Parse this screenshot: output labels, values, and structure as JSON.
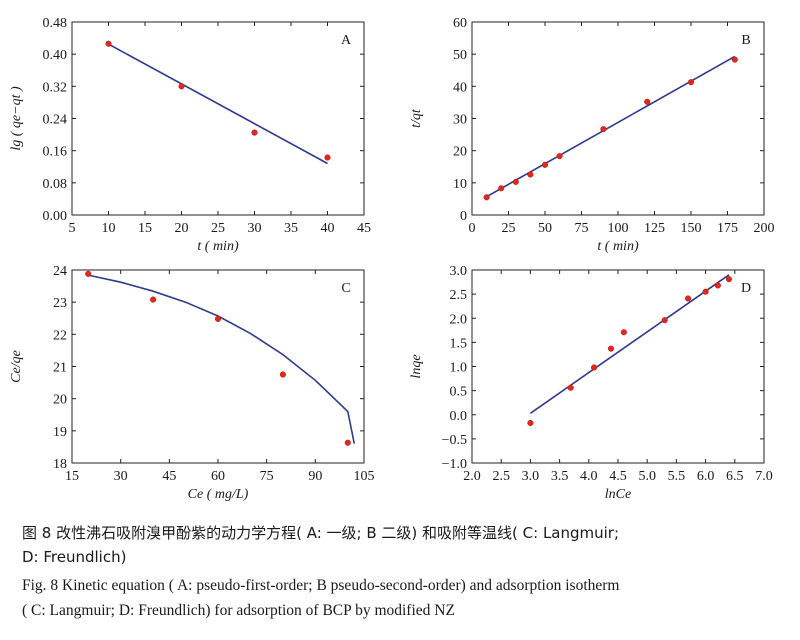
{
  "chart_data": [
    {
      "panel": "A",
      "type": "scatter",
      "xlabel": "t ( min)",
      "ylabel": "lg ( qe−qt )",
      "xlim": [
        5,
        45
      ],
      "ylim": [
        0.0,
        0.48
      ],
      "xticks": [
        "5",
        "10",
        "15",
        "20",
        "25",
        "30",
        "35",
        "40",
        "45"
      ],
      "yticks": [
        "0.00",
        "0.08",
        "0.16",
        "0.24",
        "0.32",
        "0.40",
        "0.48"
      ],
      "points": [
        [
          10,
          0.426
        ],
        [
          20,
          0.32
        ],
        [
          30,
          0.205
        ],
        [
          40,
          0.143
        ]
      ],
      "fit_line": [
        [
          10,
          0.425
        ],
        [
          40,
          0.128
        ]
      ]
    },
    {
      "panel": "B",
      "type": "scatter",
      "xlabel": "t ( min)",
      "ylabel": "t/qt",
      "xlim": [
        0,
        200
      ],
      "ylim": [
        0,
        60
      ],
      "xticks": [
        "0",
        "25",
        "50",
        "75",
        "100",
        "125",
        "150",
        "175",
        "200"
      ],
      "yticks": [
        "0",
        "10",
        "20",
        "30",
        "40",
        "50",
        "60"
      ],
      "points": [
        [
          10,
          5.5
        ],
        [
          20,
          8.3
        ],
        [
          30,
          10.3
        ],
        [
          40,
          12.6
        ],
        [
          50,
          15.6
        ],
        [
          60,
          18.3
        ],
        [
          90,
          26.7
        ],
        [
          120,
          35.2
        ],
        [
          150,
          41.3
        ],
        [
          180,
          48.3
        ]
      ],
      "fit_line": [
        [
          10,
          5.7
        ],
        [
          180,
          49.3
        ]
      ]
    },
    {
      "panel": "C",
      "type": "scatter",
      "xlabel": "Ce ( mg/L)",
      "ylabel": "Ce/qe",
      "xlim": [
        15,
        105
      ],
      "ylim": [
        18,
        24
      ],
      "xticks": [
        "15",
        "30",
        "45",
        "60",
        "75",
        "90",
        "105"
      ],
      "yticks": [
        "18",
        "19",
        "20",
        "21",
        "22",
        "23",
        "24"
      ],
      "points": [
        [
          20,
          23.88
        ],
        [
          40,
          23.08
        ],
        [
          60,
          22.48
        ],
        [
          80,
          20.75
        ],
        [
          100,
          18.63
        ]
      ],
      "fit_curve": [
        [
          20,
          23.84
        ],
        [
          30,
          23.62
        ],
        [
          40,
          23.34
        ],
        [
          50,
          23.0
        ],
        [
          60,
          22.57
        ],
        [
          70,
          22.03
        ],
        [
          80,
          21.37
        ],
        [
          90,
          20.57
        ],
        [
          100,
          19.6
        ],
        [
          102,
          18.6
        ]
      ]
    },
    {
      "panel": "D",
      "type": "scatter",
      "xlabel": "lnCe",
      "ylabel": "lnqe",
      "xlim": [
        2.0,
        7.0
      ],
      "ylim": [
        -1.0,
        3.0
      ],
      "xticks": [
        "2.0",
        "2.5",
        "3.0",
        "3.5",
        "4.0",
        "4.5",
        "5.0",
        "5.5",
        "6.0",
        "6.5",
        "7.0"
      ],
      "yticks": [
        "−1.0",
        "−0.5",
        "0.0",
        "0.5",
        "1.0",
        "1.5",
        "2.0",
        "2.5",
        "3.0"
      ],
      "points": [
        [
          3.0,
          -0.17
        ],
        [
          3.69,
          0.56
        ],
        [
          4.09,
          0.98
        ],
        [
          4.38,
          1.37
        ],
        [
          4.6,
          1.71
        ],
        [
          5.3,
          1.96
        ],
        [
          5.7,
          2.41
        ],
        [
          6.0,
          2.55
        ],
        [
          6.21,
          2.68
        ],
        [
          6.4,
          2.81
        ]
      ],
      "fit_line": [
        [
          3.0,
          0.03
        ],
        [
          6.4,
          2.9
        ]
      ]
    }
  ],
  "caption": {
    "zh_line1": "图 8   改性沸石吸附溴甲酚紫的动力学方程( A: 一级; B 二级) 和吸附等温线( C: Langmuir;",
    "zh_line2": "D: Freundlich)",
    "en_line1": "Fig. 8   Kinetic equation ( A: pseudo-first-order; B pseudo-second-order) and adsorption isotherm",
    "en_line2": "( C: Langmuir; D: Freundlich) for adsorption of BCP by modified NZ"
  },
  "colors": {
    "line": "#2e3a8c",
    "marker": "#e0281e",
    "axis": "#222222"
  }
}
